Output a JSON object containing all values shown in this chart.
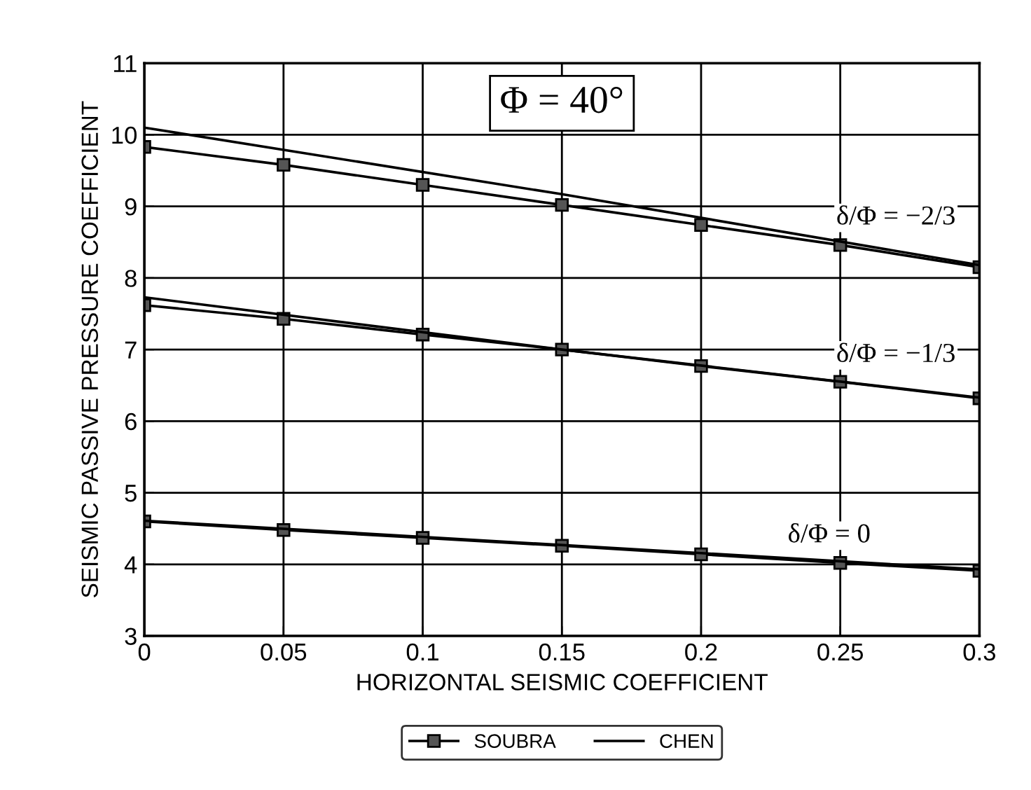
{
  "chart_data": {
    "type": "line",
    "xlabel": "HORIZONTAL SEISMIC COEFFICIENT",
    "ylabel": "SEISMIC PASSIVE PRESSURE COEFFICIENT",
    "xlim": [
      0,
      0.3
    ],
    "xticks": [
      0,
      0.05,
      0.1,
      0.15,
      0.2,
      0.25,
      0.3
    ],
    "ylim": [
      3,
      11
    ],
    "yticks": [
      3,
      4,
      5,
      6,
      7,
      8,
      9,
      10,
      11
    ],
    "grid": true,
    "legend": "bottom",
    "line_style": "solid",
    "series": [
      {
        "name": "SOUBRA",
        "color": "#000000",
        "marker": "square",
        "x": [
          0,
          0.05,
          0.1,
          0.15,
          0.2,
          0.25,
          0.3
        ],
        "values": [
          9.83,
          9.58,
          9.3,
          9.02,
          8.74,
          8.46,
          8.15
        ]
      },
      {
        "color": "#000000",
        "marker": "square",
        "x": [
          0,
          0.05,
          0.1,
          0.15,
          0.2,
          0.25,
          0.3
        ],
        "values": [
          7.62,
          7.43,
          7.21,
          7.0,
          6.77,
          6.55,
          6.32
        ]
      },
      {
        "color": "#000000",
        "marker": "square",
        "x": [
          0,
          0.05,
          0.1,
          0.15,
          0.2,
          0.25,
          0.3
        ],
        "values": [
          4.6,
          4.48,
          4.37,
          4.26,
          4.14,
          4.02,
          3.91
        ]
      },
      {
        "name": "CHEN",
        "color": "#000000",
        "marker": "none",
        "x": [
          0,
          0.15,
          0.3
        ],
        "values": [
          10.1,
          9.17,
          8.18
        ]
      },
      {
        "color": "#000000",
        "marker": "none",
        "x": [
          0,
          0.15,
          0.3
        ],
        "values": [
          7.73,
          7.0,
          6.33
        ]
      },
      {
        "color": "#000000",
        "marker": "none",
        "x": [
          0,
          0.3
        ],
        "values": [
          4.61,
          3.93
        ]
      }
    ],
    "annotations": [
      "Φ = 40°",
      "δ/Φ = −2/3",
      "δ/Φ = −1/3",
      "δ/Φ = 0"
    ]
  }
}
